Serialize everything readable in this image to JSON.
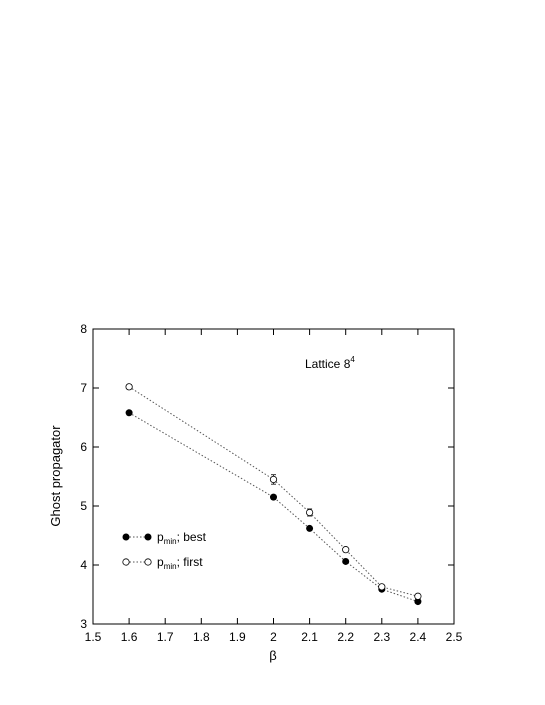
{
  "chart_data": {
    "type": "line",
    "xlabel": "β",
    "ylabel": "Ghost propagator",
    "xlim": [
      1.5,
      2.5
    ],
    "ylim": [
      3,
      8
    ],
    "x_ticks": [
      "1.5",
      "1.6",
      "1.7",
      "1.8",
      "1.9",
      "2",
      "2.1",
      "2.2",
      "2.3",
      "2.4",
      "2.5"
    ],
    "y_ticks": [
      "3",
      "4",
      "5",
      "6",
      "7",
      "8"
    ],
    "grid": false,
    "legend_position": "lower-left",
    "annotation": {
      "base": "Lattice 8",
      "superscript": "4"
    },
    "series": [
      {
        "name_main": "p",
        "name_sub": "min",
        "name_rest": ";  best",
        "marker": "filled-circle",
        "x": [
          1.6,
          2.0,
          2.1,
          2.2,
          2.3,
          2.4
        ],
        "y": [
          6.58,
          5.15,
          4.62,
          4.06,
          3.59,
          3.38
        ],
        "err": [
          0.02,
          0.02,
          0.02,
          0.02,
          0.02,
          0.02
        ]
      },
      {
        "name_main": "p",
        "name_sub": "min",
        "name_rest": ";  first",
        "marker": "open-circle",
        "x": [
          1.6,
          2.0,
          2.1,
          2.2,
          2.3,
          2.4
        ],
        "y": [
          7.02,
          5.45,
          4.89,
          4.26,
          3.63,
          3.47
        ],
        "err": [
          0.04,
          0.08,
          0.06,
          0.04,
          0.03,
          0.04
        ]
      }
    ]
  }
}
